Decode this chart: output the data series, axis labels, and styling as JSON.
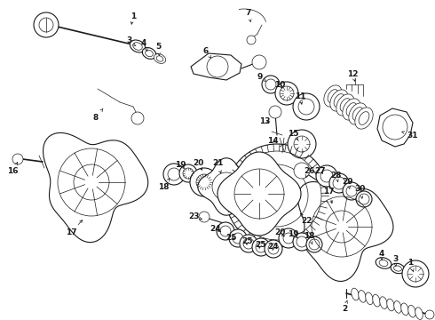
{
  "bg_color": "#ffffff",
  "fig_width": 4.9,
  "fig_height": 3.6,
  "dpi": 100,
  "lc": "#1a1a1a",
  "lw_thin": 0.5,
  "lw_med": 0.8,
  "lw_thick": 1.2,
  "fs": 6.5
}
